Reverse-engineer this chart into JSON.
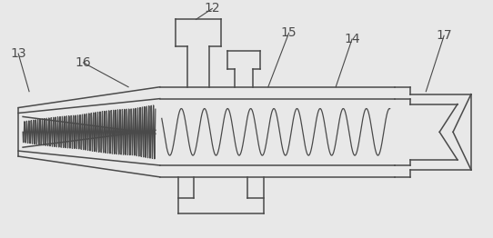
{
  "bg_color": "#e8e8e8",
  "line_color": "#4a4a4a",
  "label_fontsize": 10,
  "fig_w": 5.42,
  "fig_h": 2.62,
  "dpi": 100
}
